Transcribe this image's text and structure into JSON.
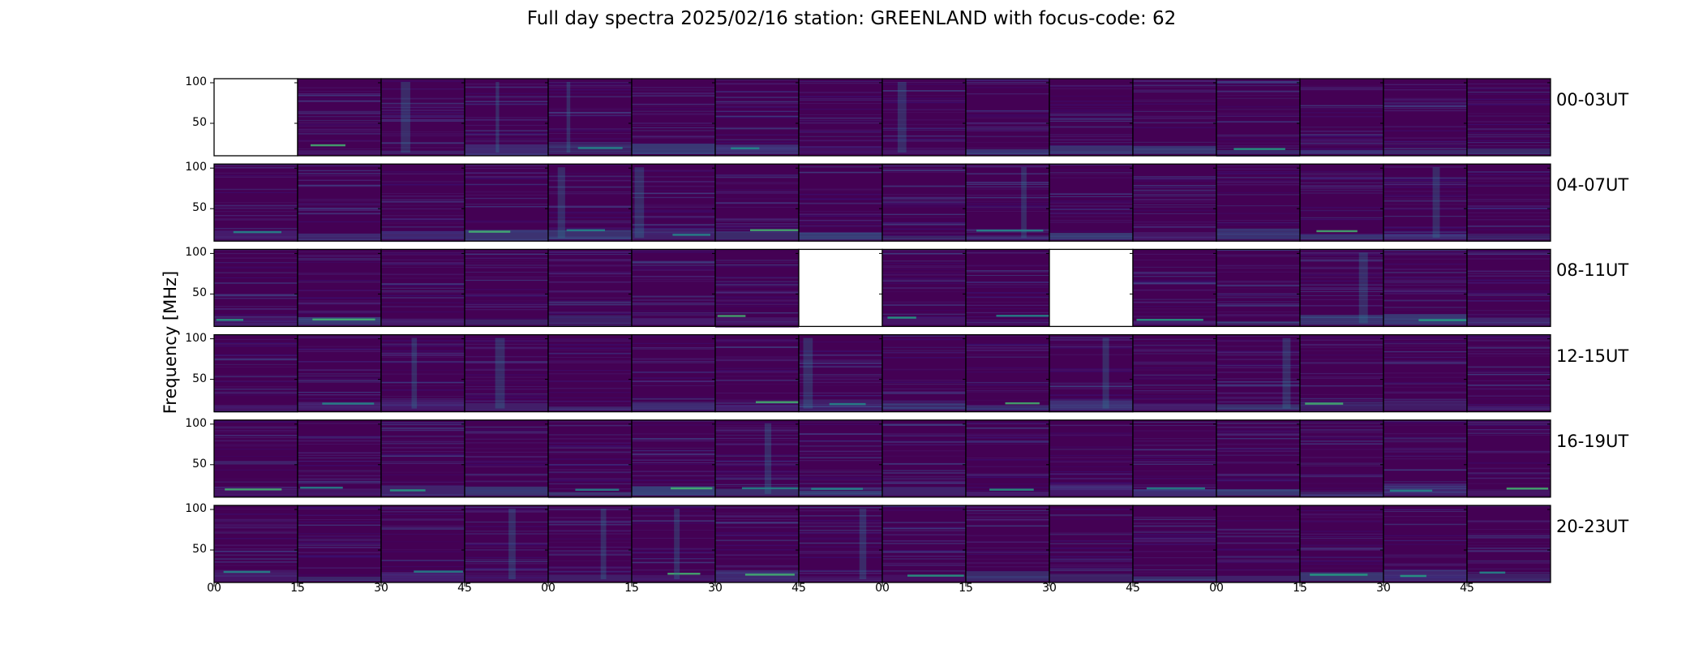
{
  "title": "Full day spectra 2025/02/16 station: GREENLAND with focus-code: 62",
  "colors": {
    "colormap": "viridis",
    "background": "#440154",
    "empty_panel": "#ffffff",
    "axis": "#000000"
  },
  "chart_data": {
    "type": "heatmap",
    "title": "Full day spectra 2025/02/16 station: GREENLAND with focus-code: 62",
    "ylabel": "Frequency [MHz]",
    "xlabel": "",
    "ylim": [
      10,
      105
    ],
    "yticks": [
      50,
      100
    ],
    "ytick_labels": [
      "50",
      "100"
    ],
    "xtick_labels": [
      "00",
      "15",
      "30",
      "45",
      "00",
      "15",
      "30",
      "45",
      "00",
      "15",
      "30",
      "45",
      "00",
      "15",
      "30",
      "45"
    ],
    "grid": false,
    "panels_per_row": 16,
    "panel_minutes": 15,
    "rows": [
      {
        "label": "00-03UT",
        "empty_panels": [
          0
        ]
      },
      {
        "label": "04-07UT",
        "empty_panels": []
      },
      {
        "label": "08-11UT",
        "empty_panels": [
          7,
          10
        ]
      },
      {
        "label": "12-15UT",
        "empty_panels": []
      },
      {
        "label": "16-19UT",
        "empty_panels": []
      },
      {
        "label": "20-23UT",
        "empty_panels": []
      }
    ]
  }
}
